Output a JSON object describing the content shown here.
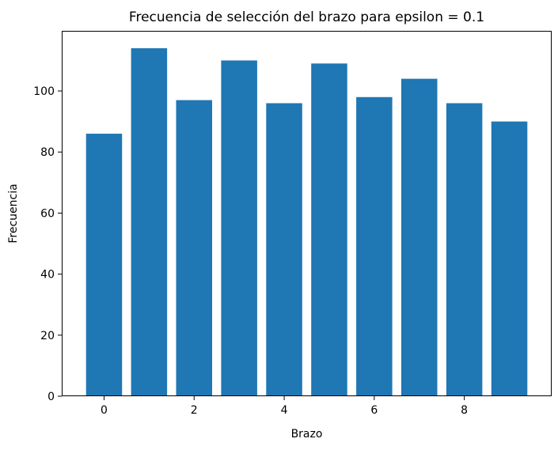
{
  "chart_data": {
    "type": "bar",
    "title": "Frecuencia de selección del brazo para epsilon = 0.1",
    "xlabel": "Brazo",
    "ylabel": "Frecuencia",
    "categories": [
      0,
      1,
      2,
      3,
      4,
      5,
      6,
      7,
      8,
      9
    ],
    "values": [
      86,
      114,
      97,
      110,
      96,
      109,
      98,
      104,
      96,
      90
    ],
    "xlim": [
      -0.94,
      9.94
    ],
    "ylim": [
      0,
      119.7
    ],
    "x_ticks": [
      0,
      2,
      4,
      6,
      8
    ],
    "y_ticks": [
      0,
      20,
      40,
      60,
      80,
      100
    ],
    "bar_color": "#1f77b4",
    "grid": false,
    "legend": "none"
  }
}
